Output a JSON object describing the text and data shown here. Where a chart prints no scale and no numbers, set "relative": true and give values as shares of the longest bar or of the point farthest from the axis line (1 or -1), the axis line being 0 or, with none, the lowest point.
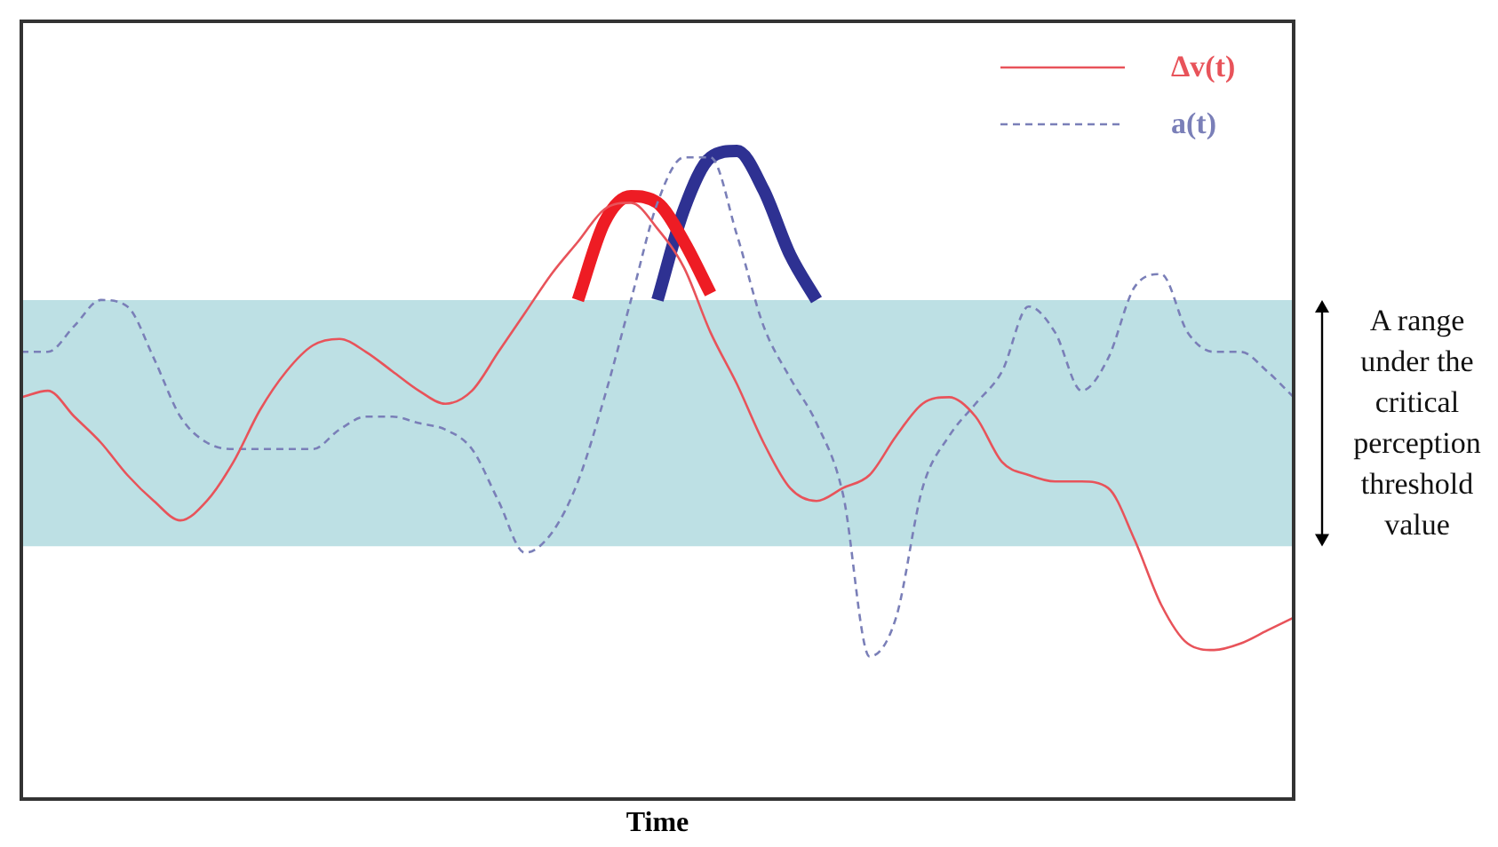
{
  "chart_data": {
    "type": "line",
    "relative": true,
    "xlabel": "Time",
    "legend": "top right",
    "marker": "none",
    "categories": [
      null,
      null,
      null,
      null,
      null,
      null,
      null,
      null,
      null,
      null,
      null,
      null,
      null,
      null,
      null,
      null,
      null,
      null,
      null,
      null,
      null,
      null,
      null,
      null,
      null,
      null,
      null,
      null,
      null,
      null,
      null,
      null,
      null,
      null,
      null,
      null,
      null,
      null,
      null,
      null,
      null,
      null,
      null,
      null,
      null,
      null,
      null,
      null,
      null
    ],
    "series": [
      {
        "name": "Δv(t)",
        "color": "#e8535a",
        "line_style": "solid",
        "values": [
          0.62,
          0.63,
          0.59,
          0.55,
          0.5,
          0.46,
          0.43,
          0.46,
          0.52,
          0.6,
          0.66,
          0.7,
          0.71,
          0.69,
          0.66,
          0.63,
          0.61,
          0.63,
          0.69,
          0.75,
          0.81,
          0.86,
          0.91,
          0.92,
          0.88,
          0.82,
          0.72,
          0.64,
          0.55,
          0.48,
          0.46,
          0.48,
          0.5,
          0.56,
          0.61,
          0.62,
          0.59,
          0.52,
          0.5,
          0.49,
          0.49,
          0.48,
          0.4,
          0.3,
          0.24,
          0.23,
          0.24,
          0.26,
          0.28
        ]
      },
      {
        "name": "a(t)",
        "color": "#7a7fb8",
        "line_style": "dashed",
        "values": [
          0.69,
          0.69,
          0.73,
          0.77,
          0.76,
          0.68,
          0.59,
          0.55,
          0.54,
          0.54,
          0.54,
          0.54,
          0.57,
          0.59,
          0.59,
          0.58,
          0.57,
          0.54,
          0.46,
          0.38,
          0.41,
          0.49,
          0.62,
          0.77,
          0.92,
          0.99,
          0.99,
          0.87,
          0.73,
          0.65,
          0.58,
          0.47,
          0.22,
          0.28,
          0.48,
          0.56,
          0.61,
          0.66,
          0.76,
          0.72,
          0.63,
          0.68,
          0.79,
          0.81,
          0.72,
          0.69,
          0.69,
          0.66,
          0.62
        ]
      },
      {
        "color": "#ee1c24",
        "line_style": "solid",
        "values": [
          null,
          null,
          null,
          null,
          null,
          null,
          null,
          null,
          null,
          null,
          null,
          null,
          null,
          null,
          null,
          null,
          null,
          null,
          null,
          null,
          null,
          0.77,
          0.89,
          0.93,
          0.92,
          0.86,
          0.78,
          null,
          null,
          null,
          null,
          null,
          null,
          null,
          null,
          null,
          null,
          null,
          null,
          null,
          null,
          null,
          null,
          null,
          null,
          null,
          null,
          null,
          null
        ]
      },
      {
        "color": "#2e3192",
        "line_style": "solid",
        "values": [
          null,
          null,
          null,
          null,
          null,
          null,
          null,
          null,
          null,
          null,
          null,
          null,
          null,
          null,
          null,
          null,
          null,
          null,
          null,
          null,
          null,
          null,
          null,
          null,
          0.77,
          0.91,
          0.99,
          1.0,
          0.94,
          0.84,
          0.77,
          null,
          null,
          null,
          null,
          null,
          null,
          null,
          null,
          null,
          null,
          null,
          null,
          null,
          null,
          null,
          null,
          null,
          null
        ]
      }
    ],
    "bands": [
      {
        "axis": "y",
        "from": 0.39,
        "to": 0.77,
        "color": "#bde0e4",
        "label": "A range under the critical perception threshold value"
      }
    ]
  }
}
